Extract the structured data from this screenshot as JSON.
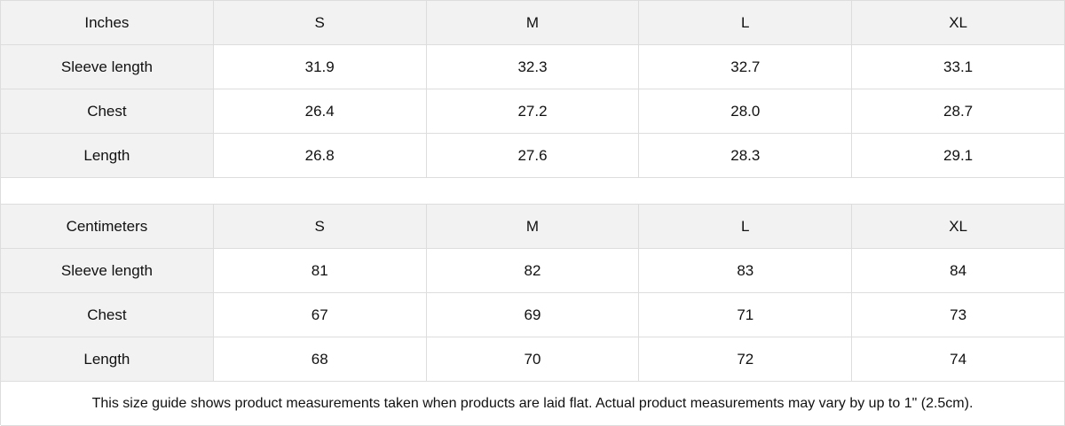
{
  "tables": [
    {
      "header": [
        "Inches",
        "S",
        "M",
        "L",
        "XL"
      ],
      "rows": [
        [
          "Sleeve length",
          "31.9",
          "32.3",
          "32.7",
          "33.1"
        ],
        [
          "Chest",
          "26.4",
          "27.2",
          "28.0",
          "28.7"
        ],
        [
          "Length",
          "26.8",
          "27.6",
          "28.3",
          "29.1"
        ]
      ]
    },
    {
      "header": [
        "Centimeters",
        "S",
        "M",
        "L",
        "XL"
      ],
      "rows": [
        [
          "Sleeve length",
          "81",
          "82",
          "83",
          "84"
        ],
        [
          "Chest",
          "67",
          "69",
          "71",
          "73"
        ],
        [
          "Length",
          "68",
          "70",
          "72",
          "74"
        ]
      ]
    }
  ],
  "note": "This size guide shows product measurements taken when products are laid flat.  Actual product measurements may vary by up to 1\" (2.5cm).",
  "colors": {
    "header_bg": "#f2f2f2",
    "border": "#dddddd"
  }
}
